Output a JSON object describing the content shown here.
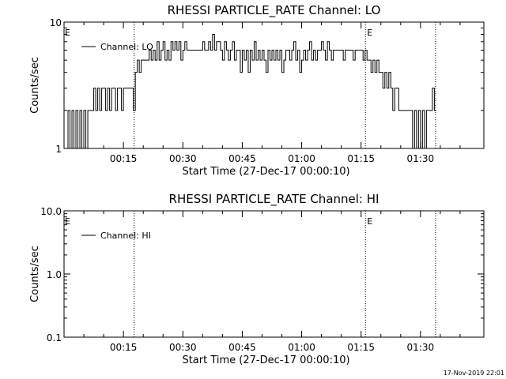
{
  "chart_data": [
    {
      "type": "line",
      "title": "RHESSI PARTICLE_RATE Channel: LO",
      "xlabel": "Start Time (27-Dec-17 00:00:10)",
      "ylabel": "Counts/sec",
      "yscale": "log",
      "ylim": [
        1,
        10
      ],
      "xlim_minutes": [
        0,
        106
      ],
      "x_ticks": [
        {
          "label": "00:15",
          "t": 15
        },
        {
          "label": "00:30",
          "t": 30
        },
        {
          "label": "00:45",
          "t": 45
        },
        {
          "label": "01:00",
          "t": 60
        },
        {
          "label": "01:15",
          "t": 75
        },
        {
          "label": "01:30",
          "t": 90
        }
      ],
      "y_ticks": [
        {
          "label": "1",
          "value": 1
        },
        {
          "label": "10",
          "value": 10
        }
      ],
      "event_lines": [
        {
          "t": 17.7,
          "marker": ""
        },
        {
          "t": 76.1,
          "marker": "E"
        },
        {
          "t": 93.8,
          "marker": ""
        }
      ],
      "edge_marker": "E",
      "legend": {
        "label": "Channel: LO",
        "position": "top-left"
      },
      "series": [
        {
          "name": "Channel: LO",
          "points": [
            [
              0.5,
              1
            ],
            [
              1,
              2
            ],
            [
              1.5,
              1
            ],
            [
              2,
              2
            ],
            [
              2.5,
              1
            ],
            [
              3,
              2
            ],
            [
              3.5,
              1
            ],
            [
              4,
              2
            ],
            [
              4.5,
              1
            ],
            [
              5,
              2
            ],
            [
              5.5,
              1
            ],
            [
              6,
              2
            ],
            [
              6.5,
              2
            ],
            [
              7,
              2
            ],
            [
              7.5,
              3
            ],
            [
              8,
              2
            ],
            [
              8.5,
              3
            ],
            [
              9,
              2
            ],
            [
              9.5,
              3
            ],
            [
              10,
              3
            ],
            [
              10.5,
              2
            ],
            [
              11,
              3
            ],
            [
              11.5,
              2
            ],
            [
              12,
              3
            ],
            [
              12.5,
              3
            ],
            [
              13,
              2
            ],
            [
              13.5,
              3
            ],
            [
              14,
              3
            ],
            [
              14.5,
              2
            ],
            [
              15,
              3
            ],
            [
              15.5,
              3
            ],
            [
              16,
              3
            ],
            [
              16.5,
              3
            ],
            [
              17,
              3
            ],
            [
              17.5,
              2
            ],
            [
              18,
              4
            ],
            [
              18.5,
              5
            ],
            [
              19,
              4
            ],
            [
              19.5,
              5
            ],
            [
              20,
              5
            ],
            [
              20.5,
              5
            ],
            [
              21,
              5
            ],
            [
              21.5,
              6
            ],
            [
              22,
              5
            ],
            [
              22.5,
              6
            ],
            [
              23,
              5
            ],
            [
              23.5,
              7
            ],
            [
              24,
              5
            ],
            [
              24.5,
              6
            ],
            [
              25,
              7
            ],
            [
              25.5,
              5
            ],
            [
              26,
              6
            ],
            [
              26.5,
              5
            ],
            [
              27,
              7
            ],
            [
              27.5,
              6
            ],
            [
              28,
              7
            ],
            [
              28.5,
              6
            ],
            [
              29,
              7
            ],
            [
              29.5,
              5
            ],
            [
              30,
              6
            ],
            [
              30.5,
              7
            ],
            [
              31,
              6
            ],
            [
              31.5,
              6
            ],
            [
              32,
              6
            ],
            [
              32.5,
              6
            ],
            [
              33,
              6
            ],
            [
              33.5,
              6
            ],
            [
              34,
              6
            ],
            [
              34.5,
              6
            ],
            [
              35,
              7
            ],
            [
              35.5,
              6
            ],
            [
              36,
              6
            ],
            [
              36.5,
              7
            ],
            [
              37,
              6
            ],
            [
              37.5,
              8
            ],
            [
              38,
              6
            ],
            [
              38.5,
              7
            ],
            [
              39,
              7
            ],
            [
              39.5,
              6
            ],
            [
              40,
              5
            ],
            [
              40.5,
              7
            ],
            [
              41,
              6
            ],
            [
              41.5,
              5
            ],
            [
              42,
              6
            ],
            [
              42.5,
              7
            ],
            [
              43,
              5
            ],
            [
              43.5,
              6
            ],
            [
              44,
              6
            ],
            [
              44.5,
              4
            ],
            [
              45,
              6
            ],
            [
              45.5,
              5
            ],
            [
              46,
              6
            ],
            [
              46.5,
              4
            ],
            [
              47,
              6
            ],
            [
              47.5,
              5
            ],
            [
              48,
              7
            ],
            [
              48.5,
              5
            ],
            [
              49,
              6
            ],
            [
              49.5,
              5
            ],
            [
              50,
              6
            ],
            [
              50.5,
              5
            ],
            [
              51,
              4
            ],
            [
              51.5,
              6
            ],
            [
              52,
              5
            ],
            [
              52.5,
              6
            ],
            [
              53,
              5
            ],
            [
              53.5,
              6
            ],
            [
              54,
              5
            ],
            [
              54.5,
              6
            ],
            [
              55,
              4
            ],
            [
              55.5,
              5
            ],
            [
              56,
              6
            ],
            [
              56.5,
              6
            ],
            [
              57,
              5
            ],
            [
              57.5,
              6
            ],
            [
              58,
              7
            ],
            [
              58.5,
              5
            ],
            [
              59,
              6
            ],
            [
              59.5,
              4
            ],
            [
              60,
              5
            ],
            [
              60.5,
              6
            ],
            [
              61,
              5
            ],
            [
              61.5,
              6
            ],
            [
              62,
              7
            ],
            [
              62.5,
              5
            ],
            [
              63,
              6
            ],
            [
              63.5,
              5
            ],
            [
              64,
              6
            ],
            [
              64.5,
              6
            ],
            [
              65,
              7
            ],
            [
              65.5,
              6
            ],
            [
              66,
              5
            ],
            [
              66.5,
              7
            ],
            [
              67,
              6
            ],
            [
              67.5,
              5
            ],
            [
              68,
              6
            ],
            [
              68.5,
              6
            ],
            [
              69,
              6
            ],
            [
              69.5,
              6
            ],
            [
              70,
              6
            ],
            [
              70.5,
              5
            ],
            [
              71,
              6
            ],
            [
              71.5,
              6
            ],
            [
              72,
              6
            ],
            [
              72.5,
              6
            ],
            [
              73,
              5
            ],
            [
              73.5,
              6
            ],
            [
              74,
              6
            ],
            [
              74.5,
              6
            ],
            [
              75,
              6
            ],
            [
              75.5,
              5
            ],
            [
              76,
              6
            ],
            [
              76.5,
              5
            ],
            [
              77,
              5
            ],
            [
              77.5,
              4
            ],
            [
              78,
              5
            ],
            [
              78.5,
              4
            ],
            [
              79,
              5
            ],
            [
              79.5,
              4
            ],
            [
              80,
              4
            ],
            [
              80.5,
              3
            ],
            [
              81,
              4
            ],
            [
              81.5,
              3
            ],
            [
              82,
              4
            ],
            [
              82.5,
              3
            ],
            [
              83,
              2
            ],
            [
              83.5,
              3
            ],
            [
              84,
              3
            ],
            [
              84.5,
              2
            ],
            [
              85,
              2
            ],
            [
              85.5,
              2
            ],
            [
              86,
              2
            ],
            [
              86.5,
              2
            ],
            [
              87,
              2
            ],
            [
              87.5,
              2
            ],
            [
              88,
              1
            ],
            [
              88.5,
              2
            ],
            [
              89,
              1
            ],
            [
              89.5,
              2
            ],
            [
              90,
              1
            ],
            [
              90.5,
              2
            ],
            [
              91,
              1
            ],
            [
              91.5,
              2
            ],
            [
              92,
              2
            ],
            [
              92.5,
              2
            ],
            [
              93,
              3
            ],
            [
              93.5,
              2
            ]
          ]
        }
      ]
    },
    {
      "type": "line",
      "title": "RHESSI PARTICLE_RATE Channel: HI",
      "xlabel": "Start Time (27-Dec-17 00:00:10)",
      "ylabel": "Counts/sec",
      "yscale": "log",
      "ylim": [
        0.1,
        10
      ],
      "xlim_minutes": [
        0,
        106
      ],
      "x_ticks": [
        {
          "label": "00:15",
          "t": 15
        },
        {
          "label": "00:30",
          "t": 30
        },
        {
          "label": "00:45",
          "t": 45
        },
        {
          "label": "01:00",
          "t": 60
        },
        {
          "label": "01:15",
          "t": 75
        },
        {
          "label": "01:30",
          "t": 90
        }
      ],
      "y_ticks": [
        {
          "label": "0.1",
          "value": 0.1
        },
        {
          "label": "1.0",
          "value": 1
        },
        {
          "label": "10.0",
          "value": 10
        }
      ],
      "event_lines": [
        {
          "t": 17.7,
          "marker": ""
        },
        {
          "t": 76.1,
          "marker": "E"
        },
        {
          "t": 93.8,
          "marker": ""
        }
      ],
      "edge_marker": "E",
      "legend": {
        "label": "Channel: HI",
        "position": "top-left"
      },
      "series": [
        {
          "name": "Channel: HI",
          "points": []
        }
      ]
    }
  ],
  "footer": {
    "timestamp": "17-Nov-2019 22:01"
  }
}
